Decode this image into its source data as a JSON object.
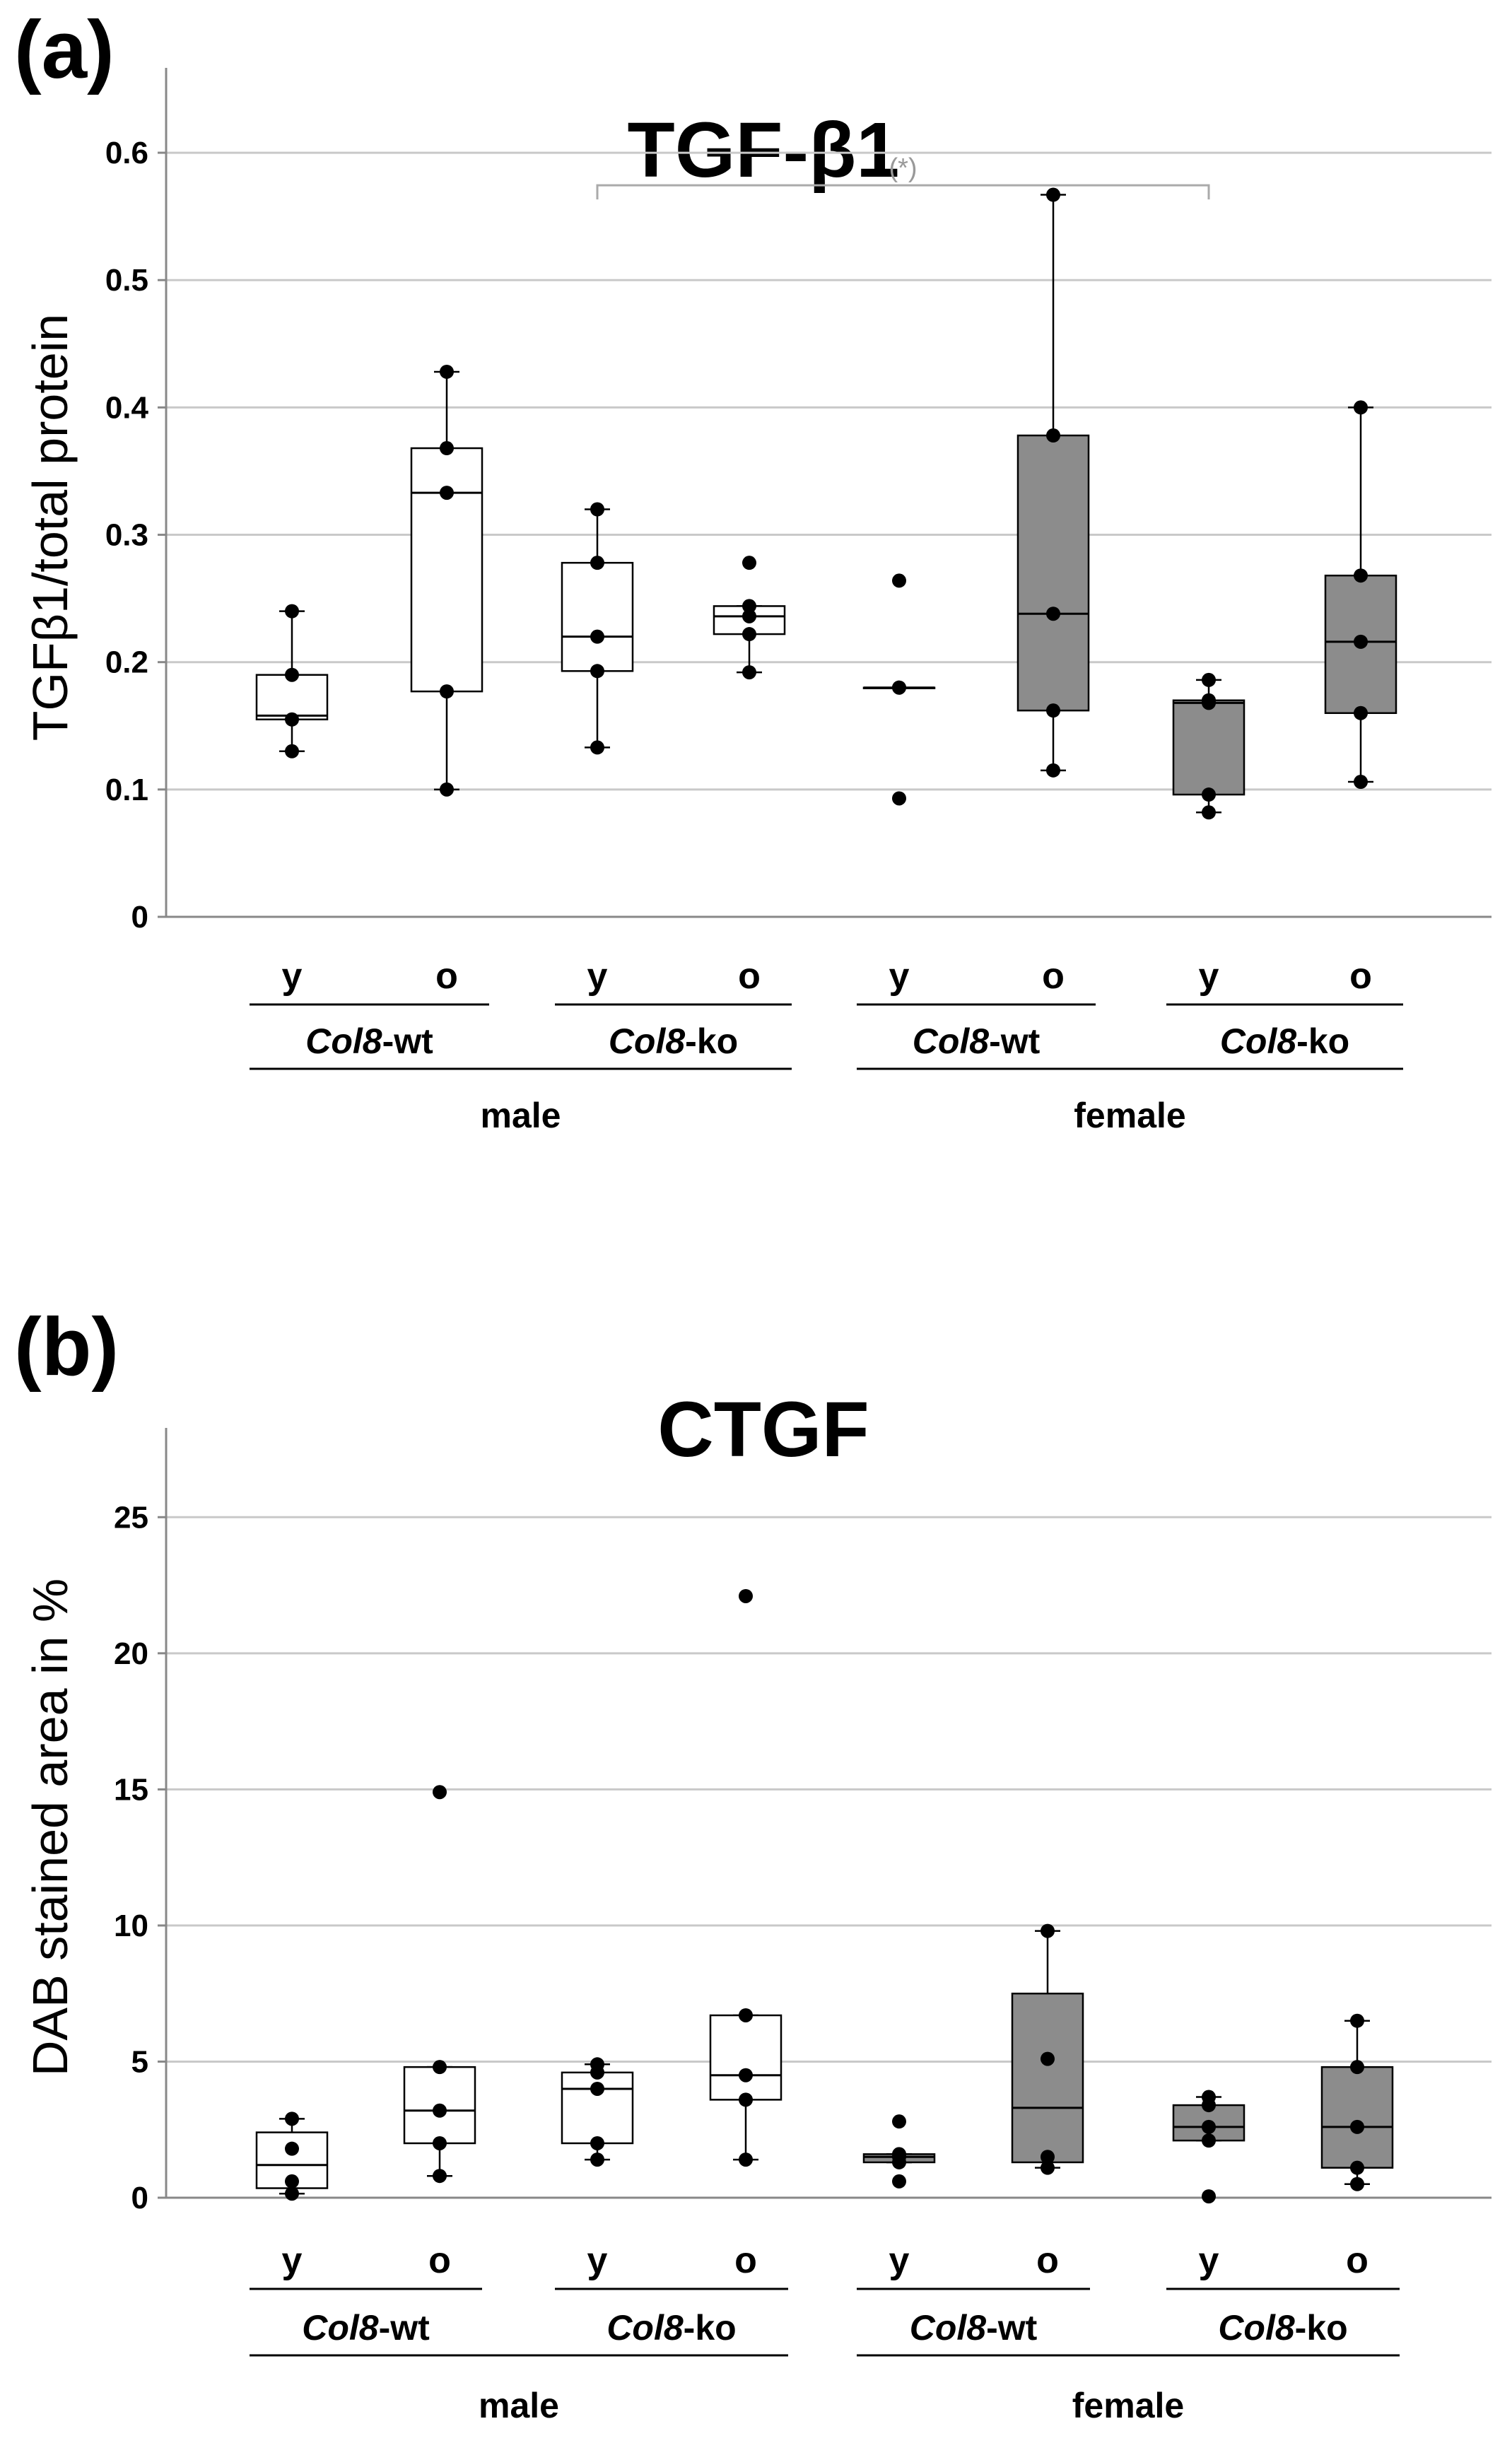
{
  "chart_data": [
    {
      "panel": "(a)",
      "type": "box",
      "title": "TGF-β1",
      "ylabel": "TGFβ1/total protein",
      "ylim": [
        0,
        0.65
      ],
      "yticks": [
        0,
        0.1,
        0.2,
        0.3,
        0.4,
        0.5,
        0.6
      ],
      "ytick_labels": [
        "0",
        "0.1",
        "0.2",
        "0.3",
        "0.4",
        "0.5",
        "0.6"
      ],
      "grid": true,
      "x_age_labels": [
        "y",
        "o",
        "y",
        "o",
        "y",
        "o",
        "y",
        "o"
      ],
      "x_genotype_groups": [
        {
          "prefix": "Col8",
          "suffix": "-wt"
        },
        {
          "prefix": "Col8",
          "suffix": "-ko"
        },
        {
          "prefix": "Col8",
          "suffix": "-wt"
        },
        {
          "prefix": "Col8",
          "suffix": "-ko"
        }
      ],
      "x_sex_groups": [
        "male",
        "female"
      ],
      "significance": {
        "label": "(*)",
        "from_box": 2,
        "to_box": 6,
        "y": 0.58
      },
      "boxes": [
        {
          "sex": "male",
          "genotype": "Col8-wt",
          "age": "y",
          "fill": "#ffffff",
          "whisker_low": 0.13,
          "q1": 0.155,
          "median": 0.158,
          "q3": 0.19,
          "whisker_high": 0.24,
          "points": [
            0.13,
            0.155,
            0.19,
            0.24
          ]
        },
        {
          "sex": "male",
          "genotype": "Col8-wt",
          "age": "o",
          "fill": "#ffffff",
          "whisker_low": 0.1,
          "q1": 0.177,
          "median": 0.333,
          "q3": 0.368,
          "whisker_high": 0.428,
          "points": [
            0.1,
            0.177,
            0.333,
            0.368,
            0.428
          ]
        },
        {
          "sex": "male",
          "genotype": "Col8-ko",
          "age": "y",
          "fill": "#ffffff",
          "whisker_low": 0.133,
          "q1": 0.193,
          "median": 0.22,
          "q3": 0.278,
          "whisker_high": 0.32,
          "points": [
            0.133,
            0.193,
            0.22,
            0.278,
            0.32
          ]
        },
        {
          "sex": "male",
          "genotype": "Col8-ko",
          "age": "o",
          "fill": "#ffffff",
          "whisker_low": 0.192,
          "q1": 0.222,
          "median": 0.236,
          "q3": 0.244,
          "whisker_high": 0.244,
          "points": [
            0.192,
            0.222,
            0.236,
            0.244,
            0.278
          ]
        },
        {
          "sex": "female",
          "genotype": "Col8-wt",
          "age": "y",
          "fill": "#8c8c8c",
          "whisker_low": 0.18,
          "q1": 0.18,
          "median": 0.18,
          "q3": 0.18,
          "whisker_high": 0.18,
          "points": [
            0.093,
            0.18,
            0.18,
            0.264
          ]
        },
        {
          "sex": "female",
          "genotype": "Col8-wt",
          "age": "o",
          "fill": "#8c8c8c",
          "whisker_low": 0.115,
          "q1": 0.162,
          "median": 0.238,
          "q3": 0.378,
          "whisker_high": 0.567,
          "points": [
            0.115,
            0.162,
            0.238,
            0.378,
            0.567
          ]
        },
        {
          "sex": "female",
          "genotype": "Col8-ko",
          "age": "y",
          "fill": "#8c8c8c",
          "whisker_low": 0.082,
          "q1": 0.096,
          "median": 0.168,
          "q3": 0.17,
          "whisker_high": 0.186,
          "points": [
            0.082,
            0.096,
            0.168,
            0.17,
            0.186
          ]
        },
        {
          "sex": "female",
          "genotype": "Col8-ko",
          "age": "o",
          "fill": "#8c8c8c",
          "whisker_low": 0.106,
          "q1": 0.16,
          "median": 0.216,
          "q3": 0.268,
          "whisker_high": 0.4,
          "points": [
            0.106,
            0.16,
            0.216,
            0.268,
            0.4
          ]
        }
      ]
    },
    {
      "panel": "(b)",
      "type": "box",
      "title": "CTGF",
      "ylabel": "DAB stained area in %",
      "ylim": [
        0,
        27.5
      ],
      "yticks": [
        0,
        5,
        10,
        15,
        20,
        25
      ],
      "ytick_labels": [
        "0",
        "5",
        "10",
        "15",
        "20",
        "25"
      ],
      "grid": true,
      "x_age_labels": [
        "y",
        "o",
        "y",
        "o",
        "y",
        "o",
        "y",
        "o"
      ],
      "x_genotype_groups": [
        {
          "prefix": "Col8",
          "suffix": "-wt"
        },
        {
          "prefix": "Col8",
          "suffix": "-ko"
        },
        {
          "prefix": "Col8",
          "suffix": "-wt"
        },
        {
          "prefix": "Col8",
          "suffix": "-ko"
        }
      ],
      "x_sex_groups": [
        "male",
        "female"
      ],
      "boxes": [
        {
          "sex": "male",
          "genotype": "Col8-wt",
          "age": "y",
          "fill": "#ffffff",
          "whisker_low": 0.15,
          "q1": 0.35,
          "median": 1.2,
          "q3": 2.4,
          "whisker_high": 2.9,
          "points": [
            0.15,
            0.6,
            1.8,
            2.9
          ]
        },
        {
          "sex": "male",
          "genotype": "Col8-wt",
          "age": "o",
          "fill": "#ffffff",
          "whisker_low": 0.8,
          "q1": 2.0,
          "median": 3.2,
          "q3": 4.8,
          "whisker_high": 4.8,
          "points": [
            0.8,
            2.0,
            3.2,
            4.8,
            14.9
          ]
        },
        {
          "sex": "male",
          "genotype": "Col8-ko",
          "age": "y",
          "fill": "#ffffff",
          "whisker_low": 1.4,
          "q1": 2.0,
          "median": 4.0,
          "q3": 4.6,
          "whisker_high": 4.9,
          "points": [
            1.4,
            2.0,
            4.0,
            4.6,
            4.9
          ]
        },
        {
          "sex": "male",
          "genotype": "Col8-ko",
          "age": "o",
          "fill": "#ffffff",
          "whisker_low": 1.4,
          "q1": 3.6,
          "median": 4.5,
          "q3": 6.7,
          "whisker_high": 6.7,
          "points": [
            1.4,
            3.6,
            4.5,
            6.7,
            22.1
          ]
        },
        {
          "sex": "female",
          "genotype": "Col8-wt",
          "age": "y",
          "fill": "#8c8c8c",
          "whisker_low": 1.3,
          "q1": 1.3,
          "median": 1.5,
          "q3": 1.6,
          "whisker_high": 1.6,
          "points": [
            0.6,
            1.3,
            1.5,
            1.6,
            2.8
          ]
        },
        {
          "sex": "female",
          "genotype": "Col8-wt",
          "age": "o",
          "fill": "#8c8c8c",
          "whisker_low": 1.1,
          "q1": 1.3,
          "median": 3.3,
          "q3": 7.5,
          "whisker_high": 9.8,
          "points": [
            1.1,
            1.5,
            5.1,
            9.8
          ]
        },
        {
          "sex": "female",
          "genotype": "Col8-ko",
          "age": "y",
          "fill": "#8c8c8c",
          "whisker_low": 2.1,
          "q1": 2.1,
          "median": 2.6,
          "q3": 3.4,
          "whisker_high": 3.7,
          "points": [
            0.05,
            2.1,
            2.6,
            3.4,
            3.7
          ]
        },
        {
          "sex": "female",
          "genotype": "Col8-ko",
          "age": "o",
          "fill": "#8c8c8c",
          "whisker_low": 0.5,
          "q1": 1.1,
          "median": 2.6,
          "q3": 4.8,
          "whisker_high": 6.5,
          "points": [
            0.5,
            1.1,
            2.6,
            4.8,
            6.5
          ]
        }
      ]
    }
  ]
}
